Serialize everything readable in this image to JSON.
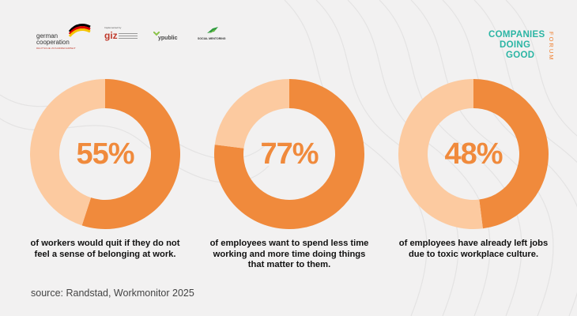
{
  "header": {
    "german_cooperation": {
      "line1": "german",
      "line2": "cooperation",
      "sub": "DEUTSCHE ZUSAMMENARBEIT"
    },
    "giz": {
      "small": "Implemented by",
      "word": "giz"
    },
    "ypublic": {
      "word": "ypublic"
    },
    "social_mentoring": {
      "word": "SOCIAL MENTORING"
    },
    "companies_doing_good": {
      "line1": "COMPANIES",
      "line2": "DOING",
      "line3": "GOOD",
      "vertical": "FORUM"
    }
  },
  "colors": {
    "accent": "#f08a3c",
    "light": "#fccaa0",
    "teal": "#2bb5a4",
    "background": "#f2f1f1"
  },
  "chart_data": [
    {
      "type": "pie",
      "values": [
        55,
        45
      ],
      "center_label": "55%",
      "caption_line1": "of workers would quit if they do not",
      "caption_line2": "feel a sense of belonging at work."
    },
    {
      "type": "pie",
      "values": [
        77,
        23
      ],
      "center_label": "77%",
      "caption_line1": "of employees want to spend less time",
      "caption_line2": "working and more time doing things",
      "caption_line3": "that matter to them."
    },
    {
      "type": "pie",
      "values": [
        48,
        52
      ],
      "center_label": "48%",
      "caption_line1": "of employees have already left jobs",
      "caption_line2": "due to toxic workplace culture."
    }
  ],
  "source": "source: Randstad, Workmonitor 2025"
}
